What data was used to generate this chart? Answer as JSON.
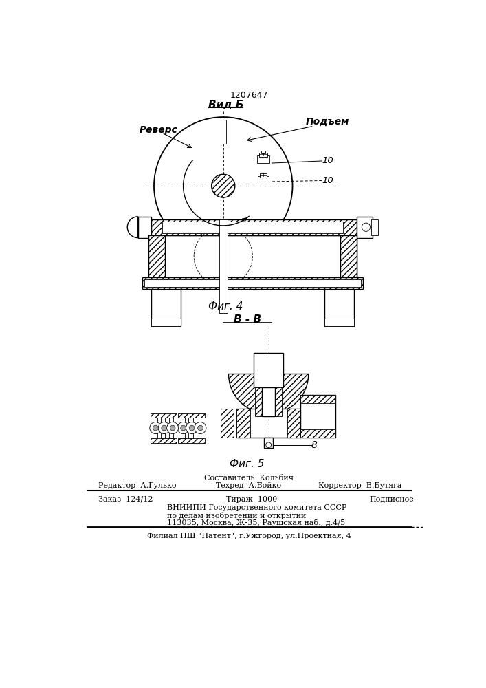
{
  "patent_number": "1207647",
  "fig4_label": "Вид Б",
  "fig4_caption": "Фиг. 4",
  "fig5_label": "В - В",
  "fig5_caption": "Фиг. 5",
  "label_revers": "Реверс",
  "label_podem": "Подъем",
  "label_10a": "10",
  "label_10b": "10",
  "label_8": "8",
  "footer_comp": "Составитель  Кольбич",
  "footer_editor": "Редактор  А.Гулько",
  "footer_tech": "Техред  А.Бойко",
  "footer_corr": "Корректор  В.Бутяга",
  "footer_order": "Заказ  124/12",
  "footer_circ": "Тираж  1000",
  "footer_sub": "Подписное",
  "footer_vniipи": "ВНИИПИ Государственного комитета СССР",
  "footer_line5": "по делам изобретений и открытий",
  "footer_line6": "113035, Москва, Ж-35, Раушская наб., д.4/5",
  "footer_bottom": "Филиал ПШ \"Патент\", г.Ужгород, ул.Проектная, 4"
}
